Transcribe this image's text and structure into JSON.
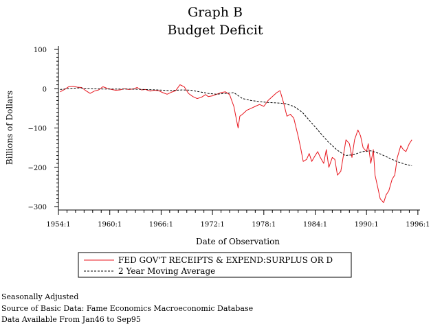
{
  "chart_data": {
    "type": "line",
    "title": "Graph B",
    "subtitle": "Budget Deficit",
    "xlabel": "Date of Observation",
    "ylabel": "Billions of Dollars",
    "xlim": [
      1954.0,
      1996.25
    ],
    "ylim": [
      -300,
      100
    ],
    "x_ticks": [
      {
        "x": 1954.0,
        "label": "1954:1"
      },
      {
        "x": 1960.0,
        "label": "1960:1"
      },
      {
        "x": 1966.0,
        "label": "1966:1"
      },
      {
        "x": 1972.0,
        "label": "1972:1"
      },
      {
        "x": 1978.0,
        "label": "1978:1"
      },
      {
        "x": 1984.0,
        "label": "1984:1"
      },
      {
        "x": 1990.0,
        "label": "1990:1"
      },
      {
        "x": 1996.0,
        "label": "1996:1"
      }
    ],
    "y_ticks": [
      {
        "y": 100,
        "label": "100"
      },
      {
        "y": 0,
        "label": "0"
      },
      {
        "y": -100,
        "label": "−100"
      },
      {
        "y": -200,
        "label": "−200"
      },
      {
        "y": -300,
        "label": "−300"
      }
    ],
    "legend": {
      "placement": "below"
    },
    "grid": false,
    "series": [
      {
        "name": "FED GOV'T RECEIPTS & EXPEND:SURPLUS OR D",
        "color": "#e8141c",
        "style": "solid",
        "x": [
          1954.2,
          1954.7,
          1955.2,
          1955.7,
          1956.2,
          1956.7,
          1957.2,
          1957.7,
          1958.2,
          1958.7,
          1959.2,
          1959.7,
          1960.2,
          1960.7,
          1961.2,
          1961.7,
          1962.2,
          1962.7,
          1963.2,
          1963.7,
          1964.2,
          1964.7,
          1965.2,
          1965.7,
          1966.2,
          1966.7,
          1967.2,
          1967.7,
          1968.2,
          1968.7,
          1969.2,
          1969.7,
          1970.2,
          1970.7,
          1971.2,
          1971.5,
          1972.0,
          1972.5,
          1973.0,
          1973.5,
          1974.0,
          1974.5,
          1975.0,
          1975.2,
          1975.5,
          1976.0,
          1976.5,
          1977.0,
          1977.5,
          1978.0,
          1978.5,
          1979.0,
          1979.5,
          1979.9,
          1980.3,
          1980.7,
          1981.1,
          1981.5,
          1982.0,
          1982.3,
          1982.6,
          1983.0,
          1983.3,
          1983.6,
          1984.0,
          1984.3,
          1984.6,
          1985.0,
          1985.3,
          1985.6,
          1986.0,
          1986.3,
          1986.6,
          1987.0,
          1987.3,
          1987.6,
          1988.0,
          1988.3,
          1988.6,
          1989.0,
          1989.3,
          1989.6,
          1990.0,
          1990.2,
          1990.5,
          1990.8,
          1991.0,
          1991.3,
          1991.6,
          1992.0,
          1992.3,
          1992.6,
          1993.0,
          1993.3,
          1993.6,
          1994.0,
          1994.3,
          1994.6,
          1995.0,
          1995.3
        ],
        "y": [
          -8,
          -2,
          5,
          6,
          4,
          3,
          -5,
          -12,
          -6,
          -3,
          5,
          1,
          -2,
          -4,
          -3,
          0,
          -2,
          -1,
          3,
          -3,
          -2,
          -6,
          -4,
          -5,
          -10,
          -14,
          -9,
          -5,
          10,
          5,
          -12,
          -20,
          -25,
          -22,
          -15,
          -20,
          -18,
          -14,
          -10,
          -8,
          -15,
          -45,
          -100,
          -70,
          -65,
          -55,
          -50,
          -45,
          -40,
          -45,
          -30,
          -20,
          -10,
          -5,
          -35,
          -70,
          -65,
          -75,
          -120,
          -150,
          -185,
          -180,
          -165,
          -185,
          -170,
          -160,
          -175,
          -190,
          -155,
          -200,
          -175,
          -180,
          -220,
          -210,
          -170,
          -130,
          -140,
          -175,
          -130,
          -105,
          -120,
          -150,
          -160,
          -140,
          -190,
          -155,
          -220,
          -250,
          -280,
          -290,
          -270,
          -260,
          -230,
          -220,
          -175,
          -145,
          -155,
          -160,
          -140,
          -130
        ]
      },
      {
        "name": "2 Year Moving Average",
        "color": "#000000",
        "style": "dashed",
        "x": [
          1954.2,
          1955.5,
          1956.5,
          1958.0,
          1959.5,
          1961.0,
          1962.5,
          1964.0,
          1965.5,
          1967.0,
          1968.5,
          1969.5,
          1970.5,
          1971.5,
          1972.5,
          1973.5,
          1974.5,
          1975.5,
          1976.5,
          1977.5,
          1978.5,
          1979.5,
          1980.5,
          1981.5,
          1982.5,
          1983.5,
          1984.5,
          1985.5,
          1986.5,
          1987.5,
          1988.5,
          1989.5,
          1990.5,
          1991.5,
          1992.5,
          1993.5,
          1994.5,
          1995.3
        ],
        "y": [
          -2,
          1,
          2,
          0,
          -1,
          -1,
          -1,
          -2,
          -3,
          -5,
          -3,
          -4,
          -8,
          -12,
          -14,
          -12,
          -10,
          -25,
          -30,
          -33,
          -35,
          -36,
          -38,
          -45,
          -60,
          -85,
          -110,
          -135,
          -155,
          -170,
          -168,
          -160,
          -158,
          -165,
          -175,
          -185,
          -192,
          -196
        ]
      }
    ]
  },
  "footnotes": [
    "Seasonally Adjusted",
    "Source of Basic Data: Fame Economics Macroeconomic Database",
    "Data Available From Jan46 to Sep95"
  ]
}
